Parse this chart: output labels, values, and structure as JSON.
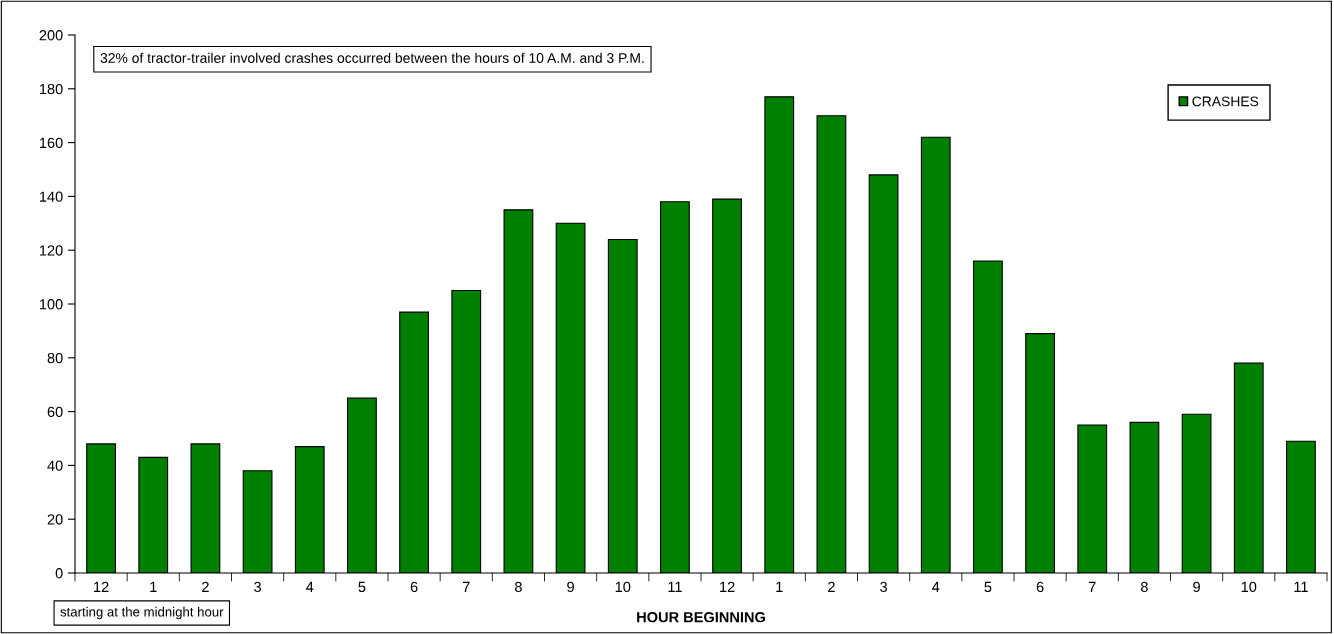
{
  "chart_data": {
    "type": "bar",
    "xlabel": "HOUR BEGINNING",
    "categories": [
      "12",
      "1",
      "2",
      "3",
      "4",
      "5",
      "6",
      "7",
      "8",
      "9",
      "10",
      "11",
      "12",
      "1",
      "2",
      "3",
      "4",
      "5",
      "6",
      "7",
      "8",
      "9",
      "10",
      "11"
    ],
    "series": [
      {
        "name": "CRASHES",
        "color": "#008000",
        "values": [
          48,
          43,
          48,
          38,
          47,
          65,
          97,
          105,
          135,
          130,
          124,
          138,
          139,
          177,
          170,
          148,
          162,
          116,
          89,
          55,
          56,
          59,
          78,
          49
        ]
      }
    ],
    "ylim": [
      0,
      200
    ],
    "yticks": [
      0,
      20,
      40,
      60,
      80,
      100,
      120,
      140,
      160,
      180,
      200
    ],
    "grid": false,
    "legend": "top right",
    "annotations": [
      "32% of tractor-trailer involved crashes occurred between the hours of 10 A.M. and 3 P.M.",
      "starting at the midnight hour"
    ]
  }
}
